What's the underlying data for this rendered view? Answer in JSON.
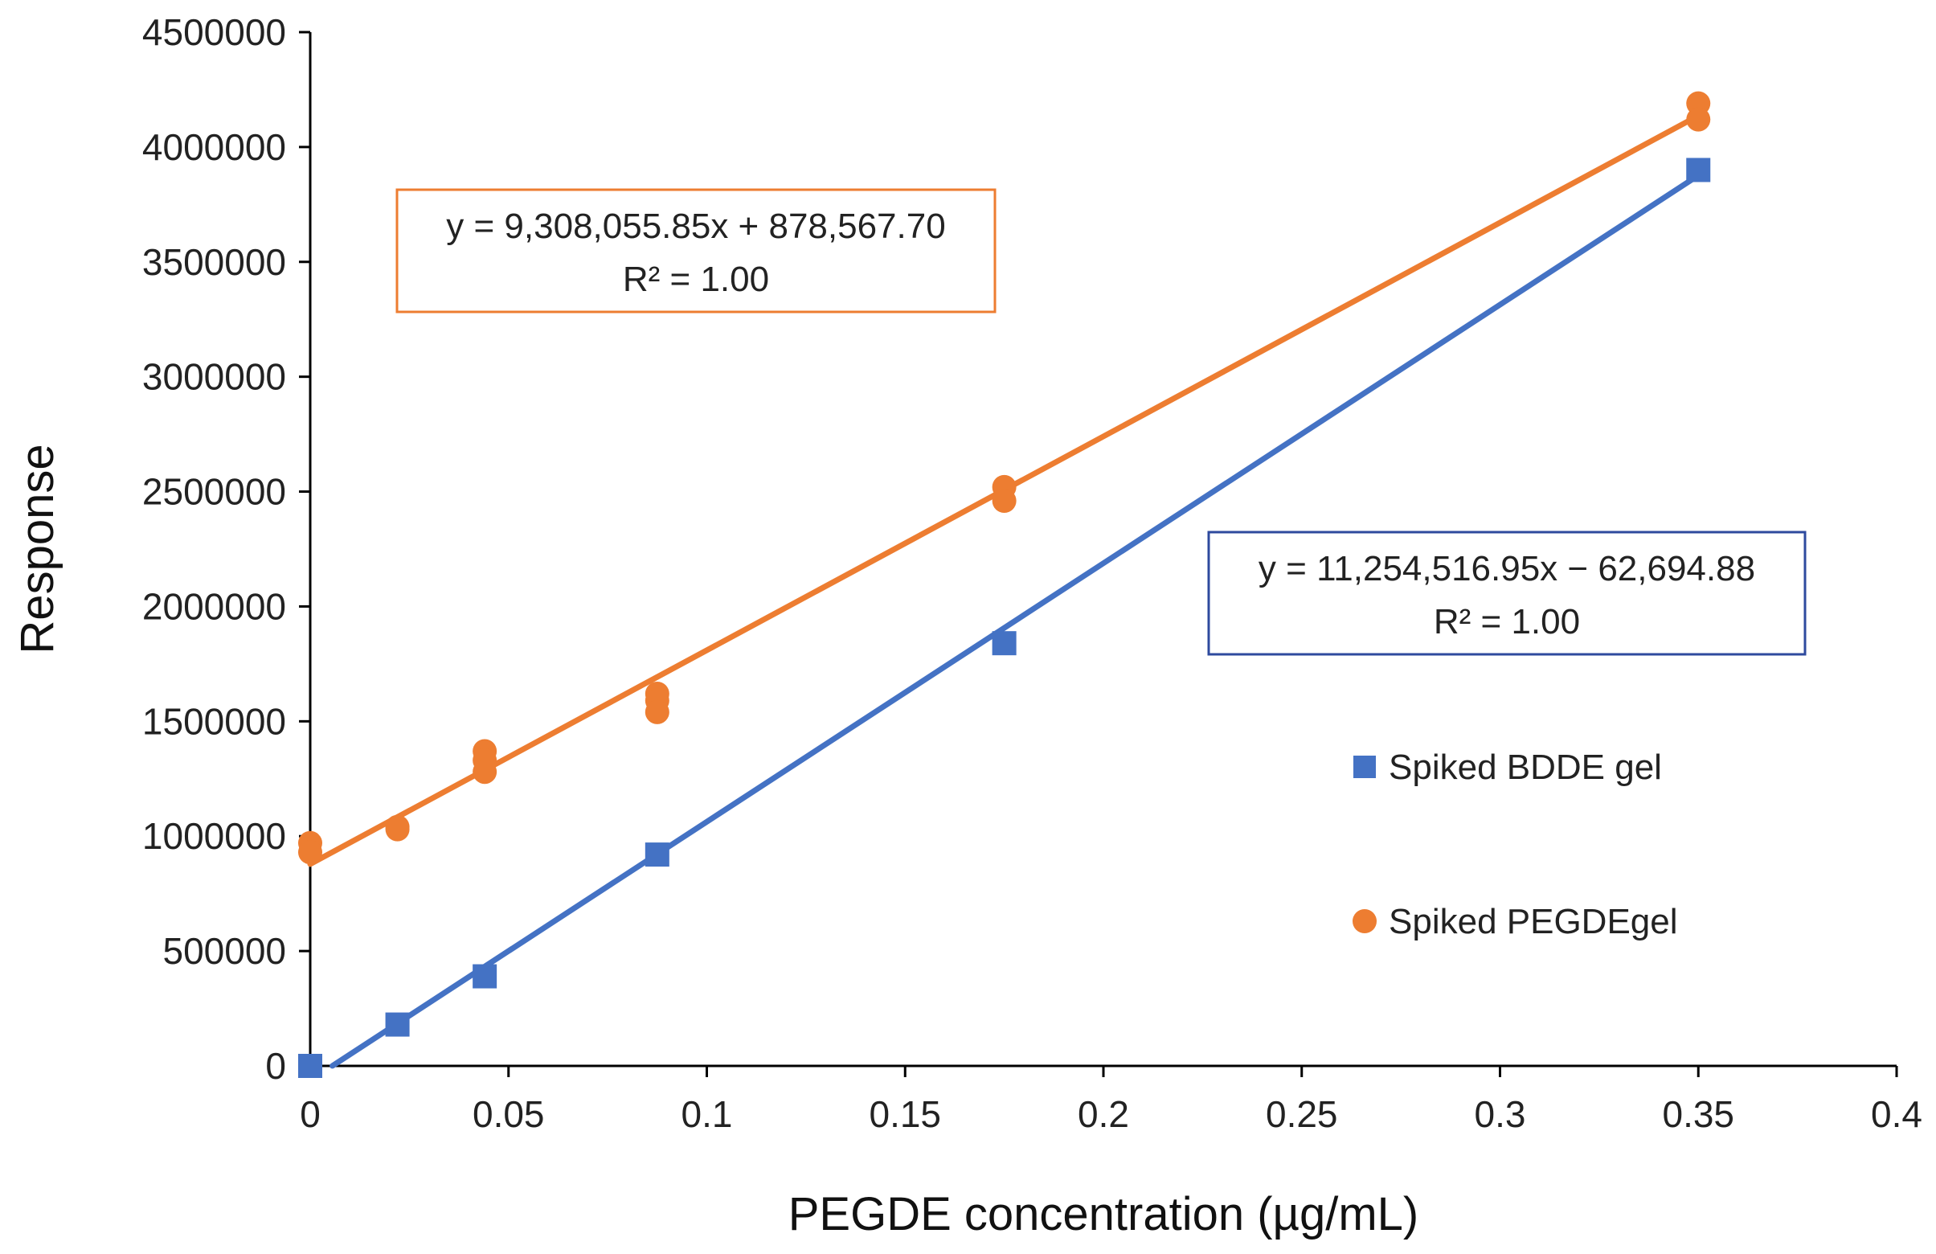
{
  "chart_data": {
    "type": "scatter",
    "xlabel": "PEGDE concentration (µg/mL)",
    "ylabel": "Response",
    "xlim": [
      0,
      0.4
    ],
    "ylim": [
      0,
      4500000
    ],
    "x_ticks": [
      0,
      0.05,
      0.1,
      0.15,
      0.2,
      0.25,
      0.3,
      0.35,
      0.4
    ],
    "x_tick_labels": [
      "0",
      "0.05",
      "0.1",
      "0.15",
      "0.2",
      "0.25",
      "0.3",
      "0.35",
      "0.4"
    ],
    "y_ticks": [
      0,
      500000,
      1000000,
      1500000,
      2000000,
      2500000,
      3000000,
      3500000,
      4000000,
      4500000
    ],
    "y_tick_labels": [
      "0",
      "500000",
      "1000000",
      "1500000",
      "2000000",
      "2500000",
      "3000000",
      "3500000",
      "4000000",
      "4500000"
    ],
    "grid": false,
    "legend_position": "right",
    "series": [
      {
        "name": "Spiked BDDE gel",
        "marker": "square",
        "color": "#4472C4",
        "points": [
          [
            0,
            0
          ],
          [
            0.022,
            180000
          ],
          [
            0.044,
            390000
          ],
          [
            0.0875,
            920000
          ],
          [
            0.175,
            1840000
          ],
          [
            0.35,
            3900000
          ]
        ],
        "trendline": {
          "slope": 11254516.95,
          "intercept": -62694.88,
          "x_range": [
            0.0056,
            0.35
          ],
          "equation": "y = 11,254,516.95x − 62,694.88",
          "r2": "R² = 1.00"
        }
      },
      {
        "name": "Spiked PEGDEgel",
        "marker": "circle",
        "color": "#ED7D31",
        "points": [
          [
            0,
            970000
          ],
          [
            0,
            930000
          ],
          [
            0.022,
            1040000
          ],
          [
            0.022,
            1030000
          ],
          [
            0.044,
            1370000
          ],
          [
            0.044,
            1330000
          ],
          [
            0.044,
            1280000
          ],
          [
            0.0875,
            1620000
          ],
          [
            0.0875,
            1590000
          ],
          [
            0.0875,
            1540000
          ],
          [
            0.175,
            2520000
          ],
          [
            0.175,
            2460000
          ],
          [
            0.35,
            4190000
          ],
          [
            0.35,
            4120000
          ]
        ],
        "trendline": {
          "slope": 9308055.85,
          "intercept": 878567.7,
          "x_range": [
            0,
            0.35
          ],
          "equation": "y = 9,308,055.85x + 878,567.70",
          "r2": "R² = 1.00"
        }
      }
    ]
  }
}
